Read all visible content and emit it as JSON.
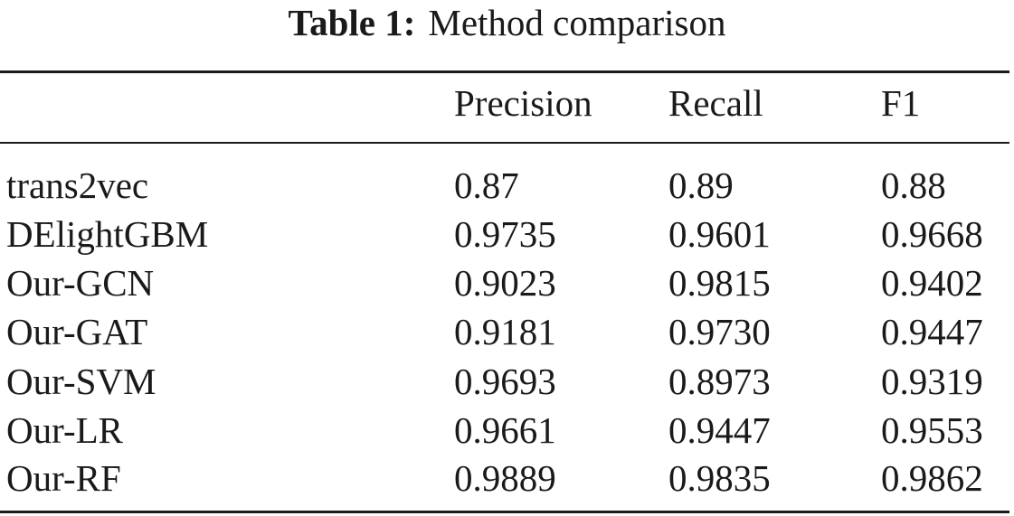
{
  "caption": {
    "label": "Table 1:",
    "text": "Method comparison"
  },
  "table": {
    "headers": [
      "",
      "Precision",
      "Recall",
      "F1"
    ],
    "rows": [
      [
        "trans2vec",
        "0.87",
        "0.89",
        "0.88"
      ],
      [
        "DElightGBM",
        "0.9735",
        "0.9601",
        "0.9668"
      ],
      [
        "Our-GCN",
        "0.9023",
        "0.9815",
        "0.9402"
      ],
      [
        "Our-GAT",
        "0.9181",
        "0.9730",
        "0.9447"
      ],
      [
        "Our-SVM",
        "0.9693",
        "0.8973",
        "0.9319"
      ],
      [
        "Our-LR",
        "0.9661",
        "0.9447",
        "0.9553"
      ],
      [
        "Our-RF",
        "0.9889",
        "0.9835",
        "0.9862"
      ]
    ]
  }
}
